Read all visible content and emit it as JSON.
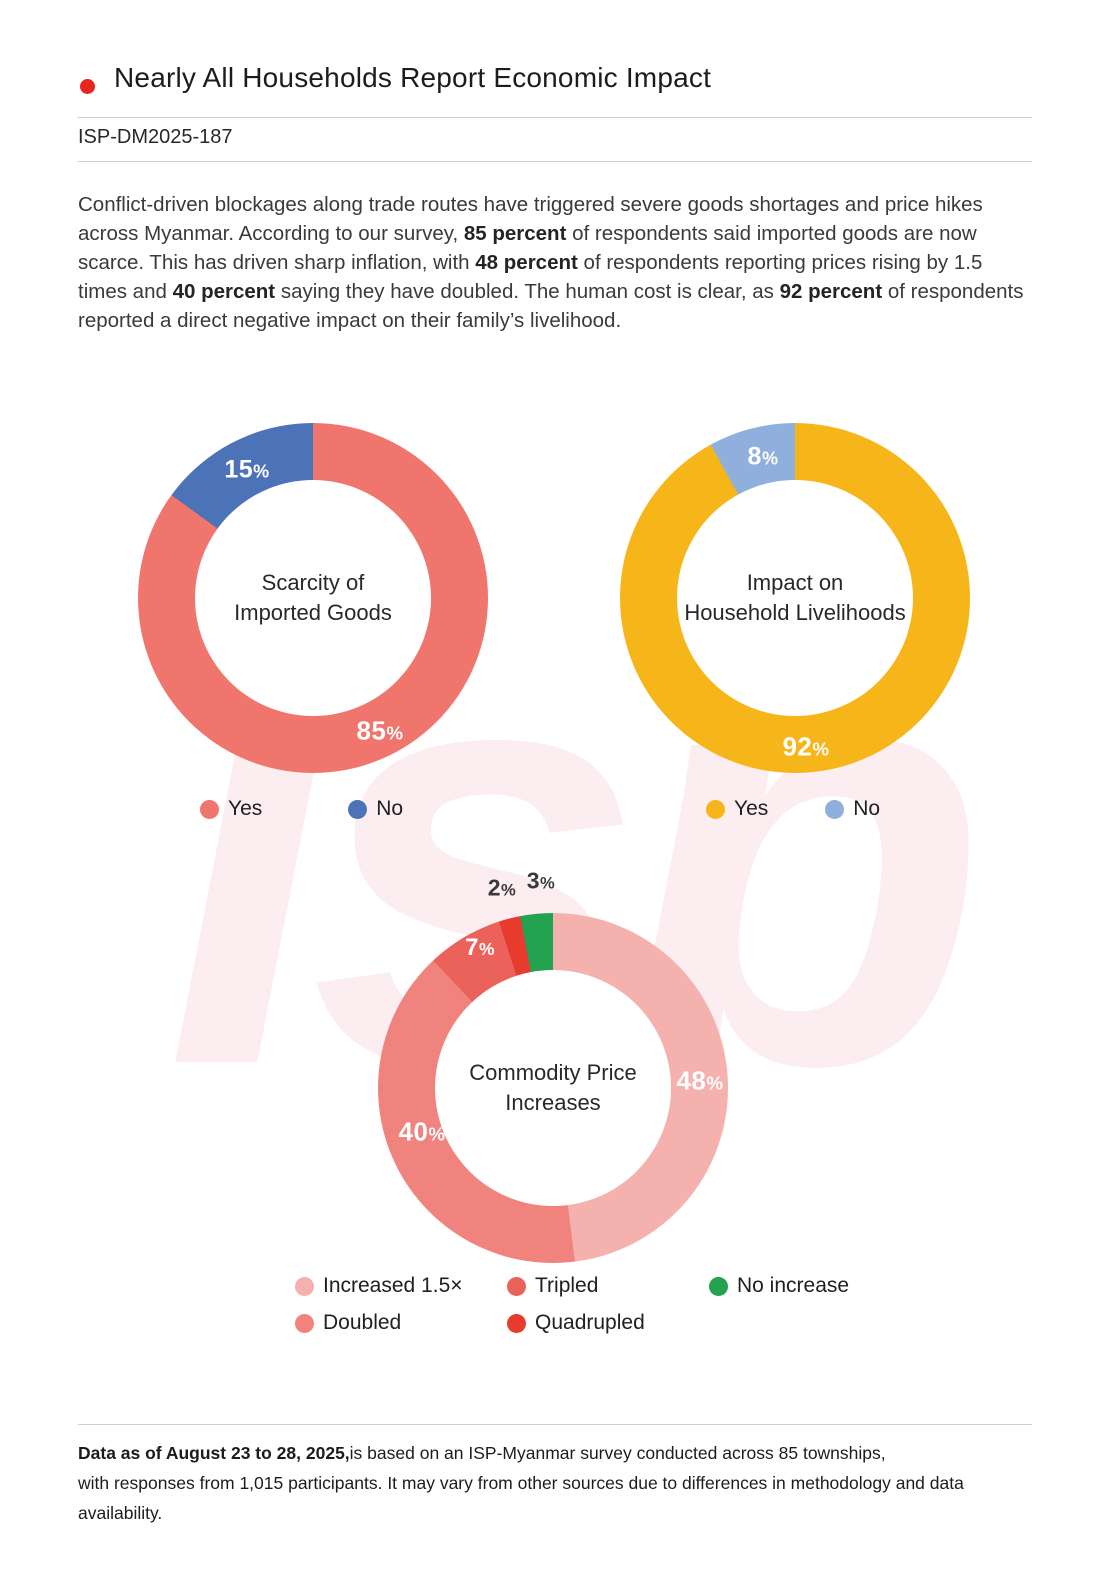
{
  "header": {
    "title": "Nearly All Households Report Economic Impact",
    "doc_id": "ISP-DM2025-187"
  },
  "colors": {
    "accent_red": "#E8251F",
    "watermark_pink": "#FBEDF0"
  },
  "watermark_text": "isp",
  "intro_segments": [
    {
      "text": "Conflict-driven blockages along trade routes have triggered severe goods shortages and price hikes across Myanmar. According to our survey, ",
      "bold": false
    },
    {
      "text": "85 percent",
      "bold": true
    },
    {
      "text": " of respondents said imported goods are now scarce. This has driven sharp inflation, with ",
      "bold": false
    },
    {
      "text": "48 percent",
      "bold": true
    },
    {
      "text": " of respondents reporting prices rising by 1.5 times and ",
      "bold": false
    },
    {
      "text": "40 percent",
      "bold": true
    },
    {
      "text": " saying they have doubled. The human cost is clear, as ",
      "bold": false
    },
    {
      "text": "92 percent",
      "bold": true
    },
    {
      "text": " of respondents reported a direct negative impact on their family’s livelihood.",
      "bold": false
    }
  ],
  "chart_data": [
    {
      "type": "pie",
      "title": "Scarcity of Imported Goods",
      "title_lines": [
        "Scarcity of",
        "Imported Goods"
      ],
      "labels": [
        "Yes",
        "No"
      ],
      "values": [
        85,
        15
      ],
      "colors": [
        "#F0756D",
        "#4C73B7"
      ],
      "slice_labels": [
        "85%",
        "15%"
      ],
      "legend": [
        {
          "label": "Yes",
          "color": "#F0756D"
        },
        {
          "label": "No",
          "color": "#4C73B7"
        }
      ],
      "legend_position": "bottom"
    },
    {
      "type": "pie",
      "title": "Impact on Household Livelihoods",
      "title_lines": [
        "Impact on",
        "Household Livelihoods"
      ],
      "labels": [
        "Yes",
        "No"
      ],
      "values": [
        92,
        8
      ],
      "colors": [
        "#F6B61A",
        "#8FAFDC"
      ],
      "slice_labels": [
        "92%",
        "8%"
      ],
      "legend": [
        {
          "label": "Yes",
          "color": "#F6B61A"
        },
        {
          "label": "No",
          "color": "#8FAFDC"
        }
      ],
      "legend_position": "bottom"
    },
    {
      "type": "pie",
      "title": "Commodity Price Increases",
      "title_lines": [
        "Commodity Price",
        "Increases"
      ],
      "labels": [
        "Increased 1.5×",
        "Doubled",
        "Tripled",
        "Quadrupled",
        "No increase"
      ],
      "values": [
        48,
        40,
        7,
        2,
        3
      ],
      "colors": [
        "#F5B1AD",
        "#F0837D",
        "#EB625A",
        "#E73B2E",
        "#23A24F"
      ],
      "slice_labels": [
        "48%",
        "40%",
        "7%",
        "2%",
        "3%"
      ],
      "legend": [
        {
          "label": "Increased 1.5×",
          "color": "#F5B1AD"
        },
        {
          "label": "Tripled",
          "color": "#EB625A"
        },
        {
          "label": "No increase",
          "color": "#23A24F"
        },
        {
          "label": "Doubled",
          "color": "#F0837D"
        },
        {
          "label": "Quadrupled",
          "color": "#E73B2E"
        }
      ],
      "legend_position": "bottom"
    }
  ],
  "footer": {
    "line1": [
      {
        "text": "Data as of August 23 to 28, 2025,",
        "bold": true
      },
      {
        "text": "is based on an ISP-Myanmar survey conducted across 85 townships,",
        "bold": false
      }
    ],
    "line2": [
      {
        "text": "with responses from 1,015 participants. It may vary from other sources due to differences in methodology and data availability.",
        "bold": false
      }
    ]
  }
}
